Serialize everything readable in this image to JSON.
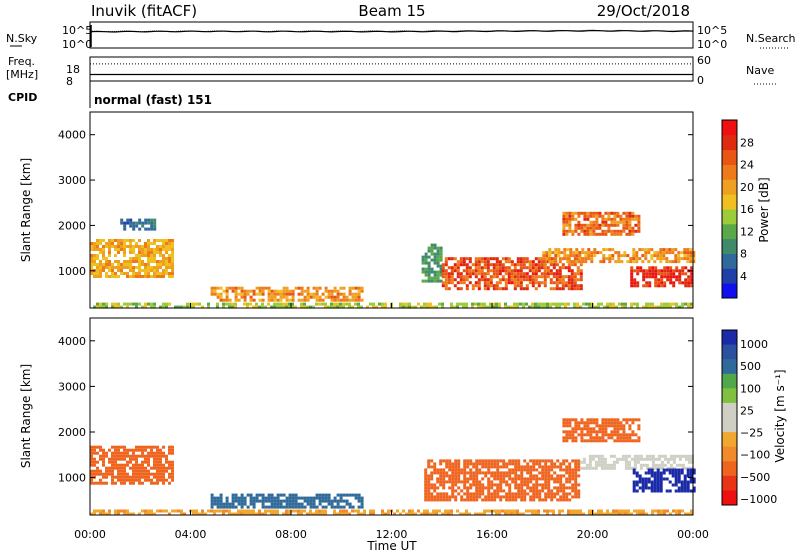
{
  "header": {
    "station": "Inuvik (fitACF)",
    "beam": "Beam 15",
    "date": "29/Oct/2018",
    "cpid_value": "normal (fast) 151"
  },
  "labels": {
    "nsky": "N.Sky",
    "nsearch": "N.Search",
    "freq": "Freq.",
    "mhz": "[MHz]",
    "nave": "Nave",
    "cpid": "CPID",
    "sky_ticks": [
      "10^5",
      "10^0"
    ],
    "freq_ticks": [
      "18",
      "8"
    ],
    "nave_ticks": [
      "60",
      "0"
    ]
  },
  "colors": {
    "power_scale": [
      "#1010ee",
      "#2040a8",
      "#2f6a9a",
      "#3e8a6a",
      "#5aa84a",
      "#9ccc3a",
      "#f0c020",
      "#f0a020",
      "#ee7a1a",
      "#e85515",
      "#e02a10",
      "#ee1010"
    ],
    "velocity_scale": [
      "#ee1010",
      "#e83518",
      "#ef6520",
      "#f08a2a",
      "#f2a830",
      "#cfcfc4",
      "#cfcfc4",
      "#7fc040",
      "#50a848",
      "#2f6a9a",
      "#2a50a0",
      "#1a2aa8"
    ]
  },
  "chart_data": [
    {
      "type": "line",
      "title": "N.Sky / N.Search",
      "ylim_labels": [
        "10^0",
        "10^5"
      ],
      "x": [
        "00:00",
        "04:00",
        "08:00",
        "12:00",
        "16:00",
        "20:00",
        "00:00"
      ],
      "series": [
        {
          "name": "N.Sky",
          "values": [
            1500,
            1800,
            1700,
            1600,
            2000,
            2400,
            1900
          ]
        },
        {
          "name": "N.Search",
          "values": [
            1800,
            2000,
            1900,
            2100,
            2300,
            2800,
            2200
          ]
        }
      ]
    },
    {
      "type": "line",
      "title": "Freq. / Nave",
      "xlabel": "",
      "x": [
        "00:00",
        "04:00",
        "08:00",
        "12:00",
        "16:00",
        "20:00",
        "00:00"
      ],
      "series": [
        {
          "name": "Freq.",
          "values": [
            10.5,
            10.5,
            10.5,
            10.5,
            10.5,
            10.5,
            10.5
          ]
        },
        {
          "name": "Nave",
          "values": [
            44,
            44,
            44,
            44,
            44,
            44,
            44
          ]
        }
      ]
    },
    {
      "type": "heatmap",
      "ylabel": "Slant Range [km]",
      "colorbar_label": "Power [dB]",
      "colorbar_ticks": [
        4,
        8,
        12,
        16,
        20,
        24,
        28
      ],
      "colorbar_range": [
        0,
        32
      ],
      "ylim": [
        180,
        4500
      ],
      "yticks": [
        1000,
        2000,
        3000,
        4000
      ],
      "xticks": [
        "00:00",
        "04:00",
        "08:00",
        "12:00",
        "16:00",
        "20:00",
        "00:00"
      ],
      "regions": [
        {
          "t0": 0.0,
          "t1": 3.3,
          "r0": 900,
          "r1": 1700,
          "value": 18
        },
        {
          "t0": 1.2,
          "t1": 2.6,
          "r0": 1900,
          "r1": 2150,
          "value": 6
        },
        {
          "t0": 4.8,
          "t1": 10.8,
          "r0": 350,
          "r1": 650,
          "value": 20
        },
        {
          "t0": 13.2,
          "t1": 14.0,
          "r0": 800,
          "r1": 1600,
          "value": 10
        },
        {
          "t0": 14.0,
          "t1": 19.5,
          "r0": 600,
          "r1": 1300,
          "value": 24
        },
        {
          "t0": 18.0,
          "t1": 24.0,
          "r0": 1200,
          "r1": 1500,
          "value": 20
        },
        {
          "t0": 18.8,
          "t1": 21.8,
          "r0": 1800,
          "r1": 2300,
          "value": 22
        },
        {
          "t0": 21.5,
          "t1": 24.0,
          "r0": 700,
          "r1": 1100,
          "value": 27
        },
        {
          "t0": 0.0,
          "t1": 24.0,
          "r0": 180,
          "r1": 300,
          "value": 14
        }
      ]
    },
    {
      "type": "heatmap",
      "ylabel": "Slant Range [km]",
      "colorbar_label": "Velocity [m s⁻¹]",
      "colorbar_ticks": [
        "1000",
        "500",
        "100",
        "25",
        "−25",
        "−100",
        "−500",
        "−1000"
      ],
      "ylim": [
        180,
        4500
      ],
      "yticks": [
        1000,
        2000,
        3000,
        4000
      ],
      "xticks": [
        "00:00",
        "04:00",
        "08:00",
        "12:00",
        "16:00",
        "20:00",
        "00:00"
      ],
      "xlabel": "Time UT",
      "regions": [
        {
          "t0": 0.0,
          "t1": 3.3,
          "r0": 900,
          "r1": 1700,
          "value": -150
        },
        {
          "t0": 4.8,
          "t1": 10.8,
          "r0": 350,
          "r1": 650,
          "value": 150
        },
        {
          "t0": 13.3,
          "t1": 19.5,
          "r0": 500,
          "r1": 1400,
          "value": -200
        },
        {
          "t0": 18.8,
          "t1": 21.8,
          "r0": 1800,
          "r1": 2300,
          "value": -200
        },
        {
          "t0": 19.5,
          "t1": 24.0,
          "r0": 1200,
          "r1": 1500,
          "value": 0
        },
        {
          "t0": 21.6,
          "t1": 24.0,
          "r0": 700,
          "r1": 1200,
          "value": 600
        },
        {
          "t0": 0.0,
          "t1": 24.0,
          "r0": 180,
          "r1": 300,
          "value": -50
        }
      ]
    }
  ]
}
